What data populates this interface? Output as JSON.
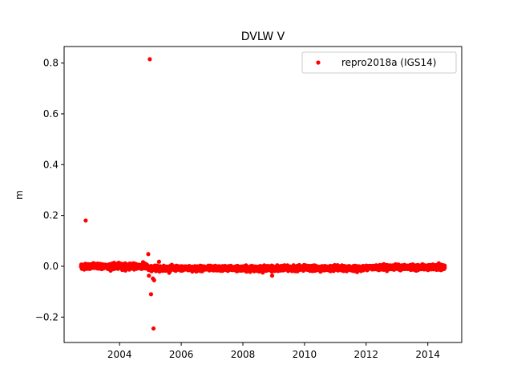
{
  "chart_data": {
    "type": "scatter",
    "title": "DVLW V",
    "xlabel": "",
    "ylabel": "m",
    "xlim": [
      2002.2,
      2015.1
    ],
    "ylim": [
      -0.3,
      0.865
    ],
    "xticks": [
      2004,
      2006,
      2008,
      2010,
      2012,
      2014
    ],
    "yticks": [
      -0.2,
      0.0,
      0.2,
      0.4,
      0.6,
      0.8
    ],
    "ytick_labels": [
      "−0.2",
      "0.0",
      "0.2",
      "0.4",
      "0.6",
      "0.8"
    ],
    "grid": false,
    "legend_position": "top-right",
    "series": [
      {
        "name": "repro2018a (IGS14)",
        "color": "#ff0000",
        "marker": "circle",
        "segments": [
          {
            "x_start": 2002.75,
            "x_end": 2004.9,
            "center": 0.0,
            "spread": 0.009
          },
          {
            "x_start": 2004.9,
            "x_end": 2011.95,
            "center": -0.008,
            "spread": 0.008
          },
          {
            "x_start": 2012.0,
            "x_end": 2014.55,
            "center": -0.004,
            "spread": 0.008
          }
        ],
        "outliers": [
          {
            "x": 2002.9,
            "y": 0.18
          },
          {
            "x": 2004.98,
            "y": 0.815
          },
          {
            "x": 2004.93,
            "y": 0.048
          },
          {
            "x": 2004.95,
            "y": -0.037
          },
          {
            "x": 2005.02,
            "y": -0.11
          },
          {
            "x": 2005.08,
            "y": -0.048
          },
          {
            "x": 2005.12,
            "y": -0.055
          },
          {
            "x": 2005.1,
            "y": -0.245
          },
          {
            "x": 2005.28,
            "y": 0.018
          },
          {
            "x": 2008.95,
            "y": -0.037
          }
        ]
      }
    ]
  }
}
